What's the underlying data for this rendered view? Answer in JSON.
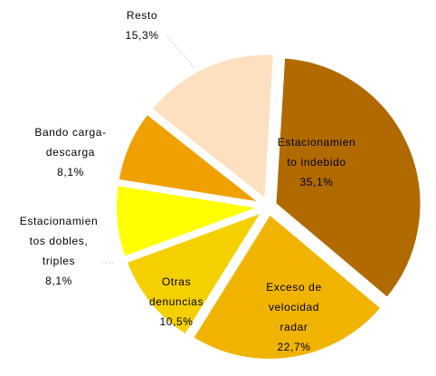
{
  "chart_data": {
    "type": "pie",
    "categories": [
      [
        "Estacionamien",
        "to indebido"
      ],
      [
        "Exceso de",
        "velocidad",
        "radar"
      ],
      [
        "Otras",
        "denuncias"
      ],
      [
        "Estacionamien",
        "tos dobles,",
        "triples"
      ],
      [
        "Bando carga-",
        "descarga"
      ],
      [
        "Resto"
      ]
    ],
    "values": [
      35.1,
      22.7,
      10.5,
      8.1,
      8.1,
      15.3
    ],
    "value_labels": [
      "35,1%",
      "22,7%",
      "10,5%",
      "8,1%",
      "8,1%",
      "15,3%"
    ],
    "colors": [
      "#b06a00",
      "#f0b400",
      "#f5d000",
      "#ffff00",
      "#f0a000",
      "#fde0c0"
    ]
  }
}
